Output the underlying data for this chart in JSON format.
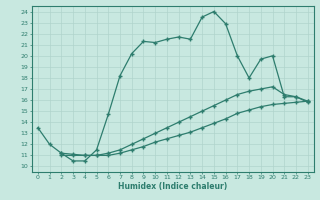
{
  "xlabel": "Humidex (Indice chaleur)",
  "ylabel": "",
  "background_color": "#c8e8e0",
  "grid_color": "#b0d4cc",
  "line_color": "#2e7d6e",
  "xlim": [
    -0.5,
    23.5
  ],
  "ylim": [
    9.5,
    24.5
  ],
  "xticks": [
    0,
    1,
    2,
    3,
    4,
    5,
    6,
    7,
    8,
    9,
    10,
    11,
    12,
    13,
    14,
    15,
    16,
    17,
    18,
    19,
    20,
    21,
    22,
    23
  ],
  "yticks": [
    10,
    11,
    12,
    13,
    14,
    15,
    16,
    17,
    18,
    19,
    20,
    21,
    22,
    23,
    24
  ],
  "line1_x": [
    0,
    1,
    2,
    3,
    4,
    5,
    6,
    7,
    8,
    9,
    10,
    11,
    12,
    13,
    14,
    15,
    16,
    17,
    18,
    19,
    20,
    21,
    22,
    23
  ],
  "line1_y": [
    13.5,
    12.0,
    11.2,
    10.5,
    10.5,
    11.5,
    14.7,
    18.2,
    20.2,
    21.3,
    21.2,
    21.5,
    21.7,
    21.5,
    23.5,
    24.0,
    22.9,
    20.0,
    18.0,
    19.7,
    20.0,
    16.3,
    16.3,
    15.8
  ],
  "line2_x": [
    2,
    3,
    4,
    5,
    6,
    7,
    8,
    9,
    10,
    11,
    12,
    13,
    14,
    15,
    16,
    17,
    18,
    19,
    20,
    21,
    22,
    23
  ],
  "line2_y": [
    11.2,
    11.1,
    11.0,
    11.0,
    11.2,
    11.5,
    12.0,
    12.5,
    13.0,
    13.5,
    14.0,
    14.5,
    15.0,
    15.5,
    16.0,
    16.5,
    16.8,
    17.0,
    17.2,
    16.5,
    16.3,
    15.9
  ],
  "line3_x": [
    2,
    3,
    4,
    5,
    6,
    7,
    8,
    9,
    10,
    11,
    12,
    13,
    14,
    15,
    16,
    17,
    18,
    19,
    20,
    21,
    22,
    23
  ],
  "line3_y": [
    11.0,
    11.0,
    11.0,
    11.0,
    11.0,
    11.2,
    11.5,
    11.8,
    12.2,
    12.5,
    12.8,
    13.1,
    13.5,
    13.9,
    14.3,
    14.8,
    15.1,
    15.4,
    15.6,
    15.7,
    15.8,
    15.9
  ]
}
